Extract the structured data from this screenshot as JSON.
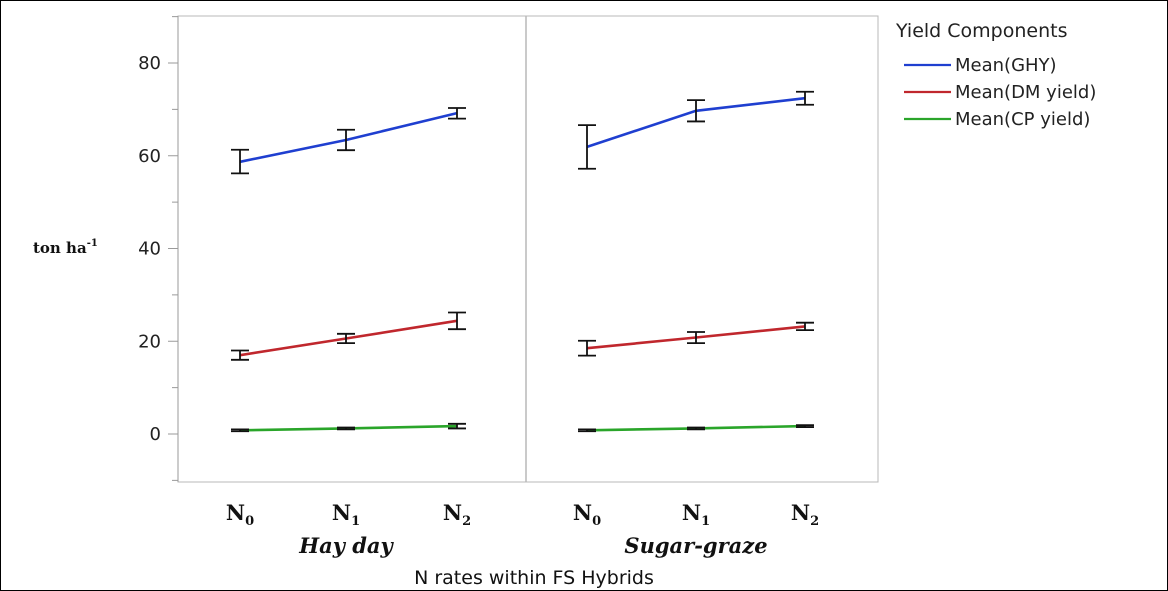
{
  "chart_data": {
    "type": "line",
    "title": "",
    "xlabel": "N rates within FS Hybrids",
    "ylabel": {
      "base": "ton ha",
      "sup": "-1"
    },
    "ylim": [
      -10,
      90
    ],
    "yticks": [
      0,
      20,
      40,
      60,
      80
    ],
    "grid": false,
    "legend_title": "Yield Components",
    "legend_position": "right",
    "groups": [
      {
        "name": "Hay day",
        "categories": [
          {
            "base": "N",
            "sub": "0"
          },
          {
            "base": "N",
            "sub": "1"
          },
          {
            "base": "N",
            "sub": "2"
          }
        ],
        "series": [
          {
            "name": "Mean(GHY)",
            "color": "#1f3fd0",
            "values": [
              58.7,
              63.4,
              69.2
            ],
            "err_low": [
              56.2,
              61.2,
              68.0
            ],
            "err_high": [
              61.3,
              65.6,
              70.3
            ]
          },
          {
            "name": "Mean(DM yield)",
            "color": "#c0272d",
            "values": [
              17.0,
              20.6,
              24.4
            ],
            "err_low": [
              16.0,
              19.6,
              22.6
            ],
            "err_high": [
              18.0,
              21.6,
              26.2
            ]
          },
          {
            "name": "Mean(CP yield)",
            "color": "#2aa52a",
            "values": [
              0.8,
              1.2,
              1.7
            ],
            "err_low": [
              0.6,
              1.0,
              1.2
            ],
            "err_high": [
              1.0,
              1.4,
              2.2
            ]
          }
        ]
      },
      {
        "name": "Sugar-graze",
        "categories": [
          {
            "base": "N",
            "sub": "0"
          },
          {
            "base": "N",
            "sub": "1"
          },
          {
            "base": "N",
            "sub": "2"
          }
        ],
        "series": [
          {
            "name": "Mean(GHY)",
            "color": "#1f3fd0",
            "values": [
              61.9,
              69.7,
              72.4
            ],
            "err_low": [
              57.2,
              67.4,
              71.0
            ],
            "err_high": [
              66.6,
              72.0,
              73.8
            ]
          },
          {
            "name": "Mean(DM yield)",
            "color": "#c0272d",
            "values": [
              18.5,
              20.8,
              23.2
            ],
            "err_low": [
              16.9,
              19.6,
              22.4
            ],
            "err_high": [
              20.1,
              22.0,
              24.0
            ]
          },
          {
            "name": "Mean(CP yield)",
            "color": "#2aa52a",
            "values": [
              0.8,
              1.2,
              1.7
            ],
            "err_low": [
              0.6,
              1.0,
              1.5
            ],
            "err_high": [
              1.0,
              1.4,
              1.9
            ]
          }
        ]
      }
    ]
  }
}
